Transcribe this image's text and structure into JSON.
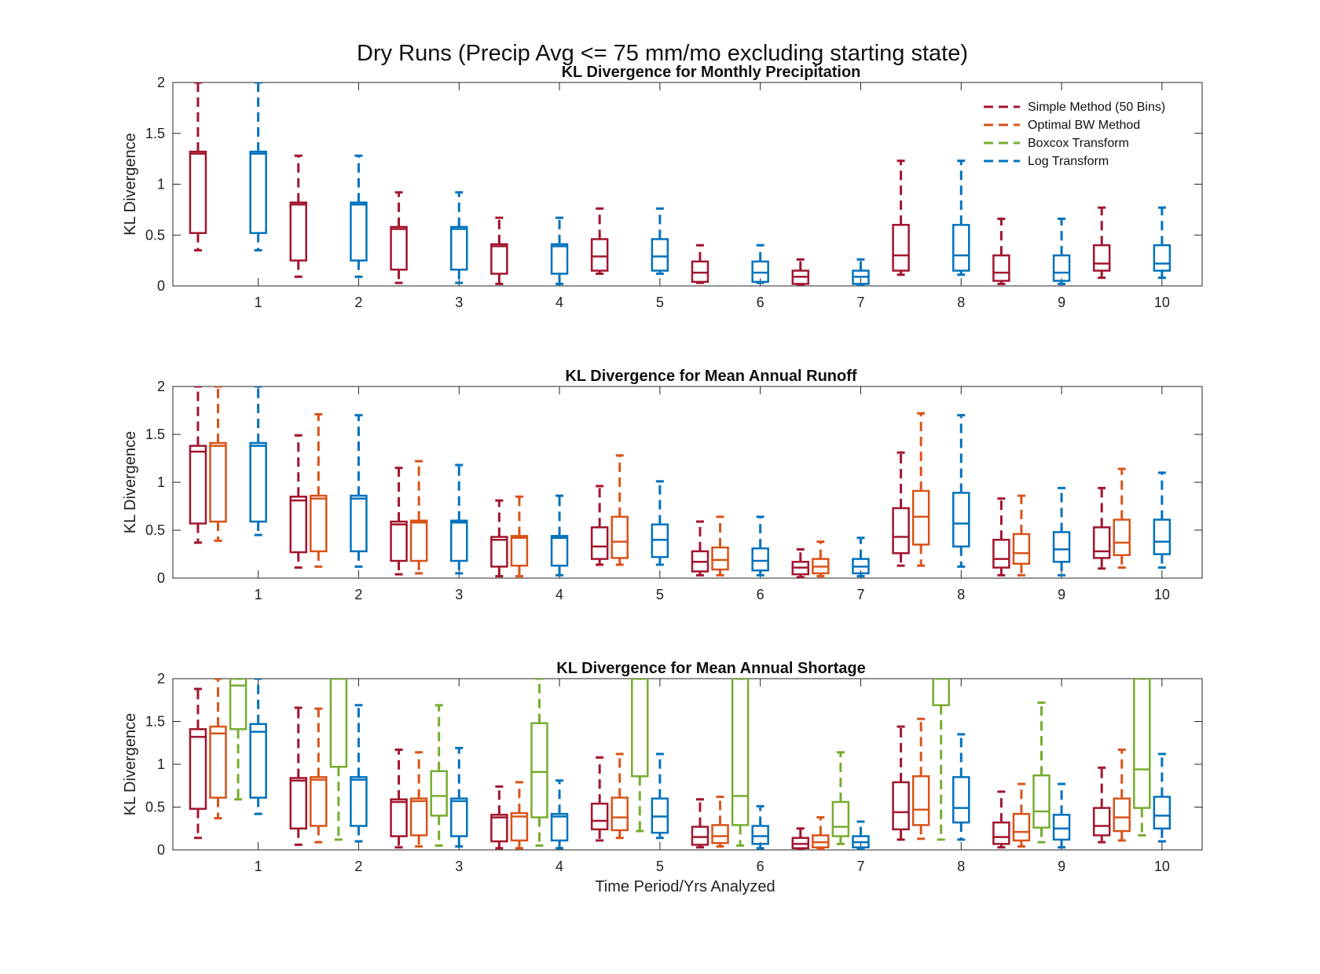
{
  "figure": {
    "suptitle": "Dry Runs (Precip Avg <= 75 mm/mo excluding starting state)",
    "xlabel": "Time Period/Yrs Analyzed",
    "legend": [
      {
        "label": "Simple Method (50 Bins)",
        "color": "#A2142F"
      },
      {
        "label": "Optimal BW Method",
        "color": "#D95319"
      },
      {
        "label": "Boxcox Transform",
        "color": "#77AC30"
      },
      {
        "label": "Log Transform",
        "color": "#0072BD"
      }
    ]
  },
  "chart_data": [
    {
      "type": "box",
      "title": "KL Divergence for Monthly Precipitation",
      "ylabel": "KL Divergence",
      "ylim": [
        0,
        2
      ],
      "yticks": [
        "0",
        "0.5",
        "1",
        "1.5",
        "2"
      ],
      "categories": [
        "1",
        "2",
        "3",
        "4",
        "5",
        "6",
        "7",
        "8",
        "9",
        "10"
      ],
      "legend_position": "top-right",
      "series": [
        {
          "name": "Simple Method (50 Bins)",
          "color": "#A2142F",
          "offset": -0.6,
          "boxes": [
            [
              0.35,
              0.52,
              1.3,
              1.32,
              2.0
            ],
            [
              0.09,
              0.25,
              0.8,
              0.82,
              1.28
            ],
            [
              0.03,
              0.16,
              0.56,
              0.58,
              0.92
            ],
            [
              0.02,
              0.12,
              0.39,
              0.41,
              0.67
            ],
            [
              0.12,
              0.15,
              0.29,
              0.46,
              0.76
            ],
            [
              0.03,
              0.04,
              0.13,
              0.24,
              0.4
            ],
            [
              0.01,
              0.02,
              0.09,
              0.15,
              0.26
            ],
            [
              0.11,
              0.15,
              0.3,
              0.6,
              1.23
            ],
            [
              0.02,
              0.05,
              0.13,
              0.3,
              0.66
            ],
            [
              0.08,
              0.15,
              0.22,
              0.4,
              0.77
            ]
          ]
        },
        {
          "name": "Log Transform",
          "color": "#0072BD",
          "offset": 0,
          "boxes": [
            [
              0.35,
              0.52,
              1.3,
              1.32,
              2.0
            ],
            [
              0.09,
              0.25,
              0.8,
              0.82,
              1.28
            ],
            [
              0.03,
              0.16,
              0.56,
              0.58,
              0.92
            ],
            [
              0.02,
              0.12,
              0.39,
              0.41,
              0.67
            ],
            [
              0.12,
              0.15,
              0.29,
              0.46,
              0.76
            ],
            [
              0.03,
              0.04,
              0.13,
              0.24,
              0.4
            ],
            [
              0.01,
              0.02,
              0.09,
              0.15,
              0.26
            ],
            [
              0.11,
              0.15,
              0.3,
              0.6,
              1.23
            ],
            [
              0.02,
              0.05,
              0.13,
              0.3,
              0.66
            ],
            [
              0.08,
              0.15,
              0.22,
              0.4,
              0.77
            ]
          ]
        }
      ]
    },
    {
      "type": "box",
      "title": "KL Divergence for Mean Annual Runoff",
      "ylabel": "KL Divergence",
      "ylim": [
        0,
        2
      ],
      "yticks": [
        "0",
        "0.5",
        "1",
        "1.5",
        "2"
      ],
      "categories": [
        "1",
        "2",
        "3",
        "4",
        "5",
        "6",
        "7",
        "8",
        "9",
        "10"
      ],
      "series": [
        {
          "name": "Simple Method (50 Bins)",
          "color": "#A2142F",
          "offset": -0.6,
          "boxes": [
            [
              0.37,
              0.57,
              1.32,
              1.38,
              2.0
            ],
            [
              0.11,
              0.27,
              0.81,
              0.85,
              1.49
            ],
            [
              0.04,
              0.18,
              0.56,
              0.59,
              1.15
            ],
            [
              0.02,
              0.12,
              0.4,
              0.43,
              0.81
            ],
            [
              0.14,
              0.2,
              0.33,
              0.53,
              0.96
            ],
            [
              0.03,
              0.07,
              0.17,
              0.28,
              0.59
            ],
            [
              0.01,
              0.04,
              0.11,
              0.17,
              0.3
            ],
            [
              0.13,
              0.26,
              0.43,
              0.73,
              1.31
            ],
            [
              0.03,
              0.11,
              0.2,
              0.4,
              0.83
            ],
            [
              0.1,
              0.21,
              0.28,
              0.53,
              0.94
            ]
          ]
        },
        {
          "name": "Optimal BW Method",
          "color": "#D95319",
          "offset": -0.4,
          "boxes": [
            [
              0.39,
              0.59,
              1.38,
              1.41,
              2.0
            ],
            [
              0.12,
              0.28,
              0.83,
              0.86,
              1.71
            ],
            [
              0.05,
              0.18,
              0.58,
              0.6,
              1.22
            ],
            [
              0.02,
              0.13,
              0.42,
              0.44,
              0.85
            ],
            [
              0.14,
              0.21,
              0.38,
              0.64,
              1.28
            ],
            [
              0.03,
              0.09,
              0.19,
              0.32,
              0.64
            ],
            [
              0.02,
              0.05,
              0.12,
              0.2,
              0.38
            ],
            [
              0.13,
              0.35,
              0.64,
              0.91,
              1.72
            ],
            [
              0.03,
              0.15,
              0.26,
              0.46,
              0.86
            ],
            [
              0.11,
              0.24,
              0.37,
              0.61,
              1.14
            ]
          ]
        },
        {
          "name": "Log Transform",
          "color": "#0072BD",
          "offset": 0,
          "boxes": [
            [
              0.45,
              0.59,
              1.38,
              1.41,
              2.0
            ],
            [
              0.12,
              0.28,
              0.83,
              0.86,
              1.7
            ],
            [
              0.05,
              0.18,
              0.58,
              0.6,
              1.18
            ],
            [
              0.03,
              0.13,
              0.42,
              0.44,
              0.86
            ],
            [
              0.14,
              0.22,
              0.4,
              0.56,
              1.01
            ],
            [
              0.03,
              0.08,
              0.18,
              0.31,
              0.64
            ],
            [
              0.02,
              0.05,
              0.12,
              0.2,
              0.42
            ],
            [
              0.12,
              0.33,
              0.57,
              0.89,
              1.7
            ],
            [
              0.03,
              0.17,
              0.3,
              0.48,
              0.94
            ],
            [
              0.11,
              0.25,
              0.38,
              0.61,
              1.1
            ]
          ]
        }
      ]
    },
    {
      "type": "box",
      "title": "KL Divergence for Mean Annual Shortage",
      "ylabel": "KL Divergence",
      "ylim": [
        0,
        2
      ],
      "yticks": [
        "0",
        "0.5",
        "1",
        "1.5",
        "2"
      ],
      "categories": [
        "1",
        "2",
        "3",
        "4",
        "5",
        "6",
        "7",
        "8",
        "9",
        "10"
      ],
      "series": [
        {
          "name": "Simple Method (50 Bins)",
          "color": "#A2142F",
          "offset": -0.6,
          "boxes": [
            [
              0.14,
              0.48,
              1.32,
              1.41,
              1.88
            ],
            [
              0.06,
              0.25,
              0.81,
              0.84,
              1.66
            ],
            [
              0.03,
              0.16,
              0.56,
              0.59,
              1.17
            ],
            [
              0.02,
              0.1,
              0.38,
              0.41,
              0.74
            ],
            [
              0.11,
              0.24,
              0.34,
              0.54,
              1.08
            ],
            [
              0.03,
              0.06,
              0.15,
              0.27,
              0.59
            ],
            [
              0.01,
              0.02,
              0.07,
              0.14,
              0.25
            ],
            [
              0.12,
              0.24,
              0.44,
              0.79,
              1.44
            ],
            [
              0.03,
              0.07,
              0.15,
              0.32,
              0.68
            ],
            [
              0.09,
              0.17,
              0.28,
              0.49,
              0.96
            ]
          ]
        },
        {
          "name": "Optimal BW Method",
          "color": "#D95319",
          "offset": -0.4,
          "boxes": [
            [
              0.37,
              0.61,
              1.36,
              1.44,
              2.0
            ],
            [
              0.09,
              0.28,
              0.82,
              0.85,
              1.65
            ],
            [
              0.04,
              0.17,
              0.57,
              0.6,
              1.14
            ],
            [
              0.02,
              0.11,
              0.39,
              0.43,
              0.79
            ],
            [
              0.14,
              0.23,
              0.38,
              0.61,
              1.12
            ],
            [
              0.04,
              0.08,
              0.16,
              0.29,
              0.62
            ],
            [
              0.01,
              0.03,
              0.09,
              0.17,
              0.38
            ],
            [
              0.13,
              0.29,
              0.47,
              0.86,
              1.53
            ],
            [
              0.04,
              0.11,
              0.21,
              0.42,
              0.77
            ],
            [
              0.11,
              0.22,
              0.38,
              0.6,
              1.17
            ]
          ]
        },
        {
          "name": "Boxcox Transform",
          "color": "#77AC30",
          "offset": -0.2,
          "boxes": [
            [
              0.59,
              1.41,
              1.92,
              2.0,
              2.0
            ],
            [
              0.12,
              0.97,
              2.0,
              2.0,
              2.0
            ],
            [
              0.05,
              0.4,
              0.63,
              0.92,
              1.69
            ],
            [
              0.05,
              0.38,
              0.91,
              1.48,
              2.0
            ],
            [
              0.22,
              0.86,
              2.0,
              2.0,
              2.0
            ],
            [
              0.05,
              0.29,
              0.63,
              2.0,
              2.0
            ],
            [
              0.07,
              0.16,
              0.27,
              0.56,
              1.14
            ],
            [
              0.12,
              1.69,
              2.0,
              2.0,
              2.0
            ],
            [
              0.09,
              0.26,
              0.45,
              0.87,
              1.72
            ],
            [
              0.17,
              0.49,
              0.94,
              2.0,
              2.0
            ]
          ]
        },
        {
          "name": "Log Transform",
          "color": "#0072BD",
          "offset": 0,
          "boxes": [
            [
              0.42,
              0.61,
              1.38,
              1.47,
              2.0
            ],
            [
              0.1,
              0.28,
              0.82,
              0.85,
              1.69
            ],
            [
              0.04,
              0.16,
              0.57,
              0.6,
              1.19
            ],
            [
              0.02,
              0.11,
              0.39,
              0.42,
              0.81
            ],
            [
              0.14,
              0.2,
              0.39,
              0.6,
              1.12
            ],
            [
              0.02,
              0.07,
              0.16,
              0.28,
              0.51
            ],
            [
              0.01,
              0.03,
              0.09,
              0.16,
              0.33
            ],
            [
              0.12,
              0.32,
              0.49,
              0.85,
              1.35
            ],
            [
              0.03,
              0.12,
              0.25,
              0.41,
              0.77
            ],
            [
              0.1,
              0.25,
              0.4,
              0.62,
              1.12
            ]
          ]
        }
      ]
    }
  ]
}
